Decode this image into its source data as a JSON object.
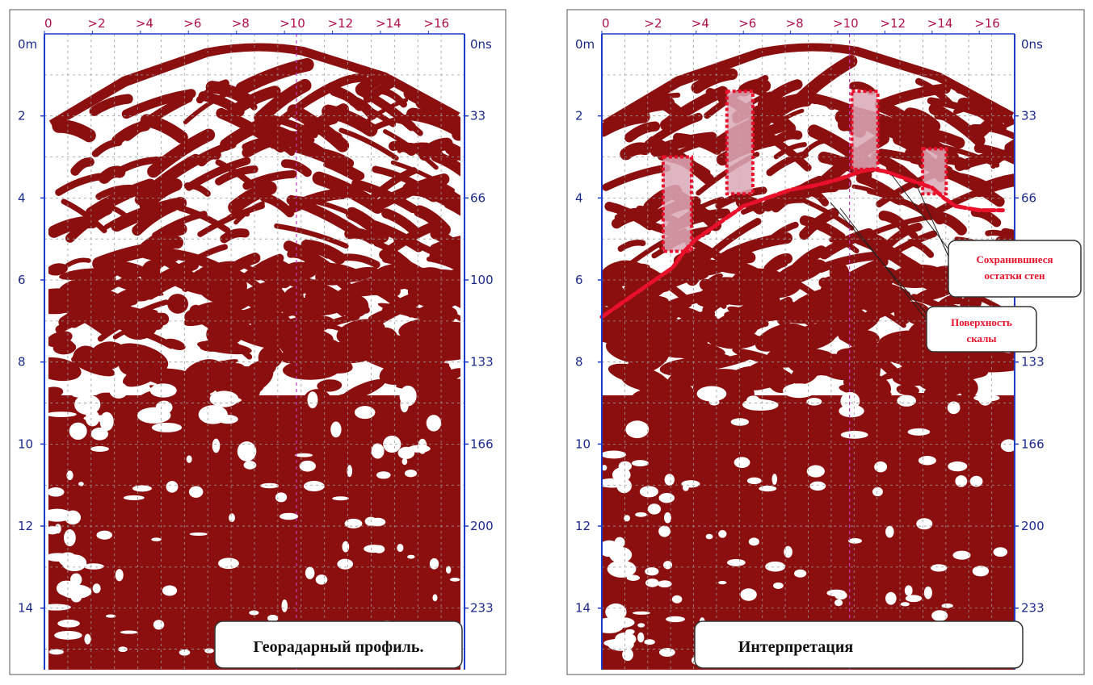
{
  "chart_data": [
    {
      "type": "heatmap",
      "title": "",
      "caption": "Георадарный профиль.",
      "x_ticks": [
        "0",
        ">2",
        ">4",
        ">6",
        ">8",
        ">10",
        ">12",
        ">14",
        ">16"
      ],
      "y_left_unit": "0m",
      "y_left_ticks": [
        "2",
        "4",
        "6",
        "8",
        "10",
        "12",
        "14"
      ],
      "y_right_unit": "0ns",
      "y_right_ticks": [
        "33",
        "66",
        "100",
        "133",
        "166",
        "200",
        "233"
      ],
      "xlim": [
        0,
        17.5
      ],
      "ylim": [
        0,
        15.5
      ],
      "grid": true,
      "colors": {
        "signal": "#8b0f0f",
        "background": "#ffffff",
        "axis": "#1a3cc8",
        "tick_label_top": "#b0104a",
        "grid": "#9a9a9a",
        "center_line": "#c040c0"
      }
    },
    {
      "type": "heatmap",
      "title": "",
      "caption": "Интерпретация",
      "x_ticks": [
        "0",
        ">2",
        ">4",
        ">6",
        ">8",
        ">10",
        ">12",
        ">14",
        ">16"
      ],
      "y_left_unit": "0m",
      "y_left_ticks": [
        "2",
        "4",
        "6",
        "8",
        "10",
        "12",
        "14"
      ],
      "y_right_unit": "0ns",
      "y_right_ticks": [
        "33",
        "66",
        "100",
        "133",
        "166",
        "200",
        "233"
      ],
      "xlim": [
        0,
        17.5
      ],
      "ylim": [
        0,
        15.5
      ],
      "grid": true,
      "annotations": [
        {
          "text_lines": [
            "Сохранившиеся",
            "остатки стен"
          ],
          "color": "#e8102a"
        },
        {
          "text_lines": [
            "Поверхность",
            "скалы"
          ],
          "color": "#e8102a"
        }
      ],
      "bedrock_line": {
        "x": [
          0,
          1,
          2,
          3,
          3.5,
          4,
          5,
          6,
          7,
          8,
          9,
          10,
          10.5,
          11,
          11.5,
          12,
          13,
          14,
          14.5,
          15,
          16,
          17
        ],
        "y": [
          6.9,
          6.5,
          6.1,
          5.7,
          5.3,
          5.0,
          4.6,
          4.2,
          4.0,
          3.8,
          3.7,
          3.55,
          3.45,
          3.35,
          3.3,
          3.35,
          3.55,
          3.75,
          4.0,
          4.2,
          4.3,
          4.3
        ]
      },
      "wall_remnants": [
        {
          "x0": 2.6,
          "x1": 3.8,
          "y0": 3.0,
          "y1": 5.3
        },
        {
          "x0": 5.3,
          "x1": 6.4,
          "y0": 1.4,
          "y1": 3.9
        },
        {
          "x0": 10.6,
          "x1": 11.7,
          "y0": 1.4,
          "y1": 3.3
        },
        {
          "x0": 13.6,
          "x1": 14.6,
          "y0": 2.8,
          "y1": 3.9
        }
      ],
      "colors": {
        "signal": "#8b0f0f",
        "background": "#ffffff",
        "axis": "#1a3cc8",
        "tick_label_top": "#b0104a",
        "grid": "#9a9a9a",
        "center_line": "#c040c0",
        "interpretation": "#e8102a",
        "remnant_fill": "#d9a8b6"
      }
    }
  ]
}
